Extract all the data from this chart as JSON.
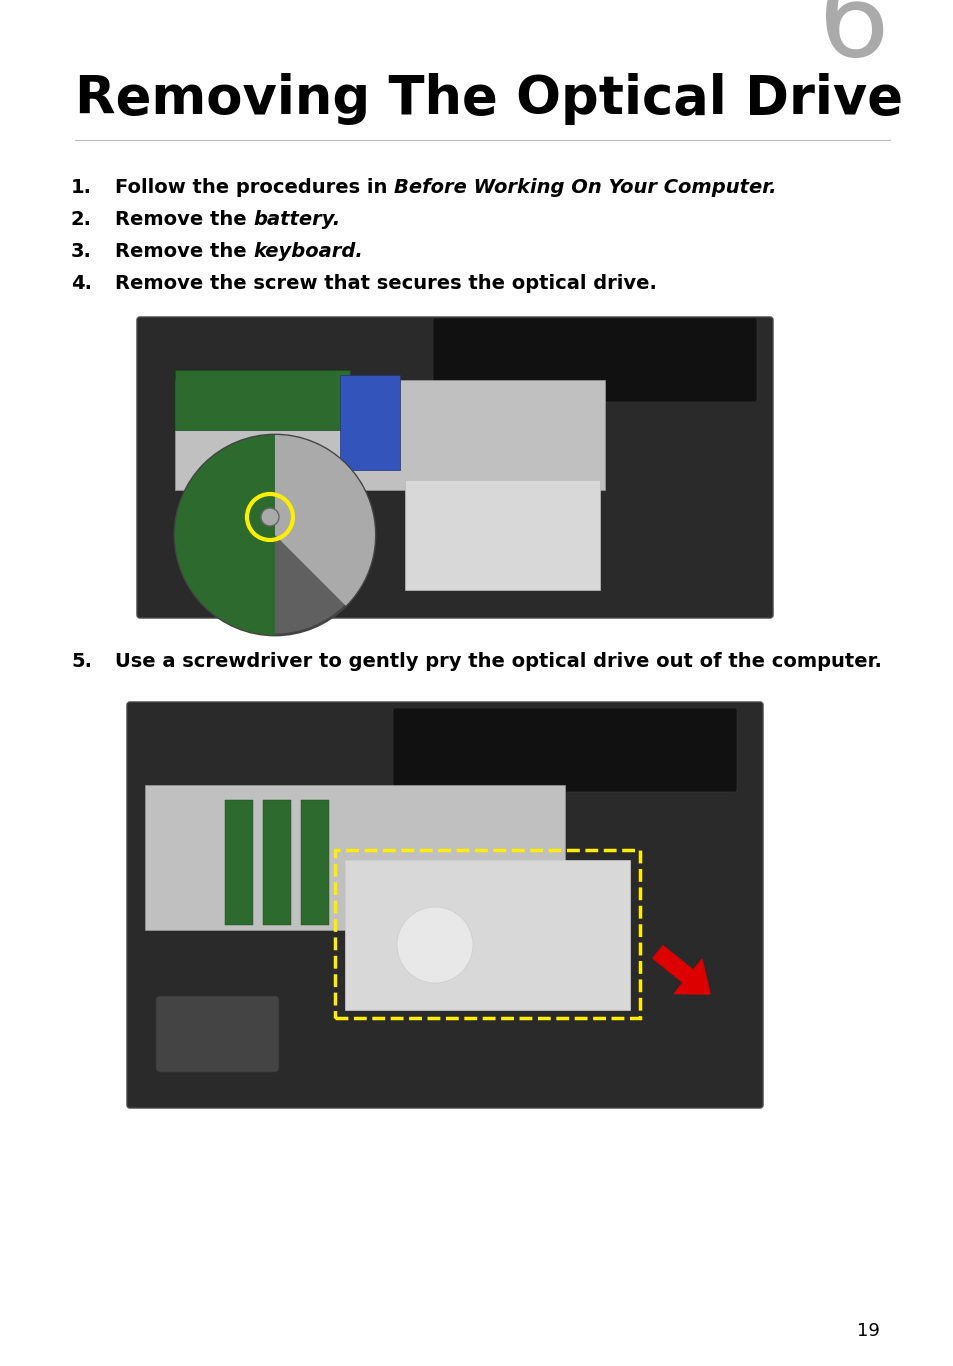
{
  "title": "Removing The Optical Drive",
  "chapter_number": "6",
  "background_color": "#ffffff",
  "title_color": "#000000",
  "chapter_color": "#aaaaaa",
  "step_color": "#000000",
  "page_number": "19",
  "page_number_color": "#000000",
  "steps": [
    {
      "number": "1.",
      "plain": "Follow the procedures in ",
      "italic": "Before Working On Your Computer.",
      "has_italic": true
    },
    {
      "number": "2.",
      "plain": "Remove the ",
      "italic": "battery.",
      "has_italic": true
    },
    {
      "number": "3.",
      "plain": "Remove the ",
      "italic": "keyboard.",
      "has_italic": true
    },
    {
      "number": "4.",
      "plain": "Remove the screw that secures the optical drive.",
      "italic": "",
      "has_italic": false
    },
    {
      "number": "5.",
      "plain": "Use a screwdriver to gently pry the optical drive out of the computer.",
      "italic": "",
      "has_italic": false
    }
  ],
  "title_fontsize": 38,
  "chapter_fontsize": 82,
  "step_fontsize": 14,
  "page_fontsize": 13,
  "img1": {
    "laptop_color": "#2a2a2a",
    "interior_color": "#c0c0c0",
    "pcb_color": "#2d6a2d",
    "blue_color": "#3355bb",
    "drive_color": "#d8d8d8",
    "zoom_color": "#888888",
    "screw_ring_color": "#ffee00",
    "screen_color": "#111111"
  },
  "img2": {
    "laptop_color": "#2a2a2a",
    "interior_color": "#c0c0c0",
    "pcb_color": "#2d6a2d",
    "drive_color": "#d8d8d8",
    "dashed_color": "#ffee00",
    "arrow_color": "#dd0000",
    "screen_color": "#111111",
    "touchpad_color": "#444444"
  }
}
